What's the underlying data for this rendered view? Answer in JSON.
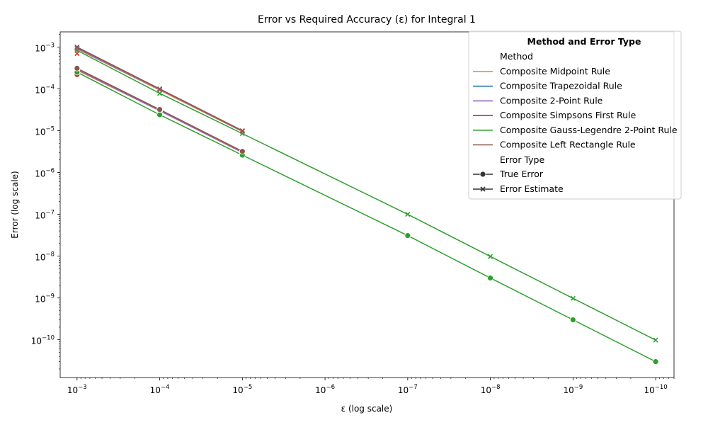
{
  "chart_data": {
    "type": "line",
    "title": "Error vs Required Accuracy (ε) for Integral 1",
    "xlabel": "ε (log scale)",
    "ylabel": "Error (log scale)",
    "x_scale": "log",
    "x_reversed": true,
    "y_scale": "log",
    "x_ticks": [
      {
        "value": 0.001,
        "base": "10",
        "exp": "−3"
      },
      {
        "value": 0.0001,
        "base": "10",
        "exp": "−4"
      },
      {
        "value": 1e-05,
        "base": "10",
        "exp": "−5"
      },
      {
        "value": 1e-06,
        "base": "10",
        "exp": "−6"
      },
      {
        "value": 1e-07,
        "base": "10",
        "exp": "−7"
      },
      {
        "value": 1e-08,
        "base": "10",
        "exp": "−8"
      },
      {
        "value": 1e-09,
        "base": "10",
        "exp": "−9"
      },
      {
        "value": 1e-10,
        "base": "10",
        "exp": "−10"
      }
    ],
    "y_ticks": [
      {
        "value": 0.001,
        "base": "10",
        "exp": "−3"
      },
      {
        "value": 0.0001,
        "base": "10",
        "exp": "−4"
      },
      {
        "value": 1e-05,
        "base": "10",
        "exp": "−5"
      },
      {
        "value": 1e-06,
        "base": "10",
        "exp": "−6"
      },
      {
        "value": 1e-07,
        "base": "10",
        "exp": "−7"
      },
      {
        "value": 1e-08,
        "base": "10",
        "exp": "−8"
      },
      {
        "value": 1e-09,
        "base": "10",
        "exp": "−9"
      },
      {
        "value": 1e-10,
        "base": "10",
        "exp": "−10"
      }
    ],
    "xlim": [
      0.0016,
      6e-11
    ],
    "ylim": [
      1.25e-11,
      0.0023
    ],
    "grid": false,
    "legend": {
      "title": "Method and Error Type",
      "position": "top-right",
      "method_header": "Method",
      "error_header": "Error Type",
      "error_types": [
        {
          "name": "True Error",
          "marker": "circle"
        },
        {
          "name": "Error Estimate",
          "marker": "x"
        }
      ]
    },
    "series": [
      {
        "name": "Composite Midpoint Rule",
        "color": "#ff7f0e",
        "true_error": {
          "x": [
            0.001,
            0.0001,
            1e-05
          ],
          "y": [
            0.00028,
            3e-05,
            3e-06
          ]
        },
        "error_estimate": {
          "x": [
            0.001,
            0.0001,
            1e-05
          ],
          "y": [
            0.0009,
            9.3e-05,
            9.5e-06
          ]
        }
      },
      {
        "name": "Composite Trapezoidal Rule",
        "color": "#1f77b4",
        "true_error": {
          "x": [
            0.001,
            0.0001,
            1e-05
          ],
          "y": [
            0.0003,
            3.1e-05,
            3.1e-06
          ]
        },
        "error_estimate": {
          "x": [
            0.001,
            0.0001,
            1e-05
          ],
          "y": [
            0.00095,
            9.8e-05,
            9.8e-06
          ]
        }
      },
      {
        "name": "Composite 2-Point Rule",
        "color": "#9467bd",
        "true_error": {
          "x": [
            0.001,
            0.0001,
            1e-05
          ],
          "y": [
            0.00029,
            3e-05,
            3.05e-06
          ]
        },
        "error_estimate": {
          "x": [
            0.001,
            0.0001,
            1e-05
          ],
          "y": [
            0.00092,
            9.6e-05,
            9.7e-06
          ]
        }
      },
      {
        "name": "Composite Simpsons First Rule",
        "color": "#d62728",
        "true_error": {
          "x": [
            0.001
          ],
          "y": [
            0.00022
          ]
        },
        "error_estimate": {
          "x": [
            0.001
          ],
          "y": [
            0.0007
          ]
        }
      },
      {
        "name": "Composite Gauss-Legendre 2-Point Rule",
        "color": "#2ca02c",
        "true_error": {
          "x": [
            0.001,
            0.0001,
            1e-05,
            1e-07,
            1e-08,
            1e-09,
            1e-10
          ],
          "y": [
            0.00025,
            2.4e-05,
            2.6e-06,
            3.1e-08,
            3e-09,
            3e-10,
            3e-11
          ]
        },
        "error_estimate": {
          "x": [
            0.001,
            0.0001,
            1e-05,
            1e-07,
            1e-08,
            1e-09,
            1e-10
          ],
          "y": [
            0.00083,
            7.8e-05,
            8.5e-06,
            1e-07,
            9.8e-09,
            9.8e-10,
            9.8e-11
          ]
        }
      },
      {
        "name": "Composite Left Rectangle Rule",
        "color": "#8c564b",
        "true_error": {
          "x": [
            0.001,
            0.0001,
            1e-05
          ],
          "y": [
            0.00031,
            3.2e-05,
            3.2e-06
          ]
        },
        "error_estimate": {
          "x": [
            0.001,
            0.0001,
            1e-05
          ],
          "y": [
            0.001,
            0.0001,
            1e-05
          ]
        }
      }
    ]
  }
}
